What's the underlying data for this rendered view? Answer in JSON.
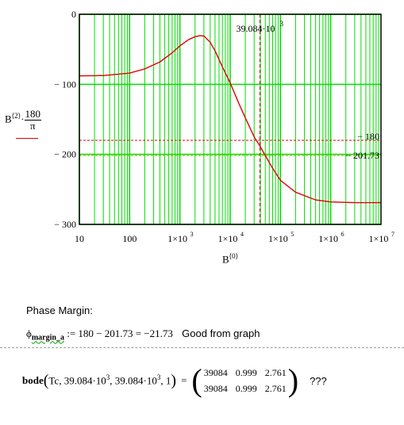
{
  "chart_data": {
    "type": "line",
    "xscale": "log",
    "xlim": [
      10,
      10000000
    ],
    "ylim": [
      -300,
      0
    ],
    "x_tick_labels": [
      "10",
      "100",
      "1×10",
      "1×10",
      "1×10",
      "1×10",
      "1×10"
    ],
    "x_tick_exponents": [
      "",
      "",
      "3",
      "4",
      "5",
      "6",
      "7"
    ],
    "y_tick_labels": [
      "0",
      "− 100",
      "− 200",
      "− 300"
    ],
    "ylabel": {
      "base": "B",
      "super": "⟨2⟩",
      "dot": "·",
      "num": "180",
      "den": "π"
    },
    "xlabel": {
      "base": "B",
      "super": "⟨0⟩"
    },
    "series": [
      {
        "color": "#e00000",
        "x": [
          10,
          30,
          100,
          200,
          400,
          700,
          1000,
          1500,
          2000,
          2500,
          3000,
          4000,
          5000,
          7000,
          10000,
          15000,
          20000,
          30000,
          39084,
          50000,
          70000,
          100000,
          200000,
          500000,
          1000000,
          3000000,
          10000000
        ],
        "y": [
          -88,
          -87.5,
          -84,
          -78,
          -68,
          -55,
          -45,
          -36,
          -32,
          -30.5,
          -31,
          -40,
          -52,
          -75,
          -98,
          -128,
          -148,
          -175,
          -188,
          -202,
          -220,
          -237,
          -254,
          -265,
          -268,
          -269,
          -269
        ]
      }
    ],
    "annotations": [
      {
        "type": "vline",
        "x": 39084,
        "color": "#e00000",
        "label": "39.084·10",
        "label_super": "3"
      },
      {
        "type": "hline",
        "y": -180,
        "color": "#e00000",
        "label": "− 180"
      },
      {
        "type": "hline",
        "y": -201.73,
        "color": "#b8b000",
        "label": "− 201.73"
      }
    ],
    "grid": true,
    "grid_color": "#00e000"
  },
  "phase_margin": {
    "heading": "Phase Margin:",
    "lhs": "ϕ",
    "lhs_sub": "margin_a",
    "expression": ":= 180 − 201.73 = −21.73",
    "comment": "Good from graph"
  },
  "bode_call": {
    "func": "bode",
    "args": "Tc, 39.084·10",
    "args_sup1": "3",
    "args_mid": ", 39.084·10",
    "args_sup2": "3",
    "args_end": ", 1",
    "equals": "=",
    "matrix": [
      [
        "39084",
        "0.999",
        "2.761"
      ],
      [
        "39084",
        "0.999",
        "2.761"
      ]
    ],
    "comment": "???"
  }
}
